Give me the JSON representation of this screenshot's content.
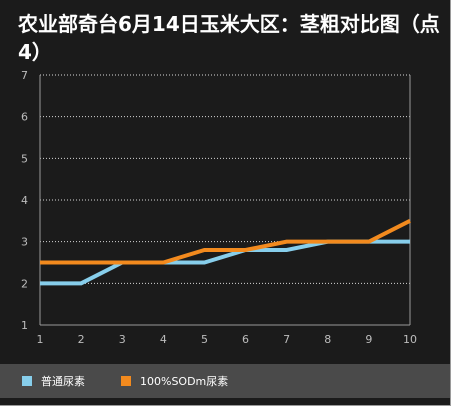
{
  "chart_data": {
    "type": "line",
    "title": "农业部奇台6月14日玉米大区：茎粗对比图（点4）",
    "x": [
      1,
      2,
      3,
      4,
      5,
      6,
      7,
      8,
      9,
      10
    ],
    "ylim": [
      1,
      7
    ],
    "yticks": [
      1,
      2,
      3,
      4,
      5,
      6,
      7
    ],
    "grid": true,
    "legend_position": "bottom",
    "series": [
      {
        "name": "普通尿素",
        "color": "#87ceeb",
        "values": [
          2.0,
          2.0,
          2.5,
          2.5,
          2.5,
          2.8,
          2.8,
          3.0,
          3.0,
          3.0
        ]
      },
      {
        "name": "100%SODm尿素",
        "color": "#f28a1e",
        "values": [
          2.5,
          2.5,
          2.5,
          2.5,
          2.8,
          2.8,
          3.0,
          3.0,
          3.0,
          3.5
        ]
      }
    ]
  }
}
